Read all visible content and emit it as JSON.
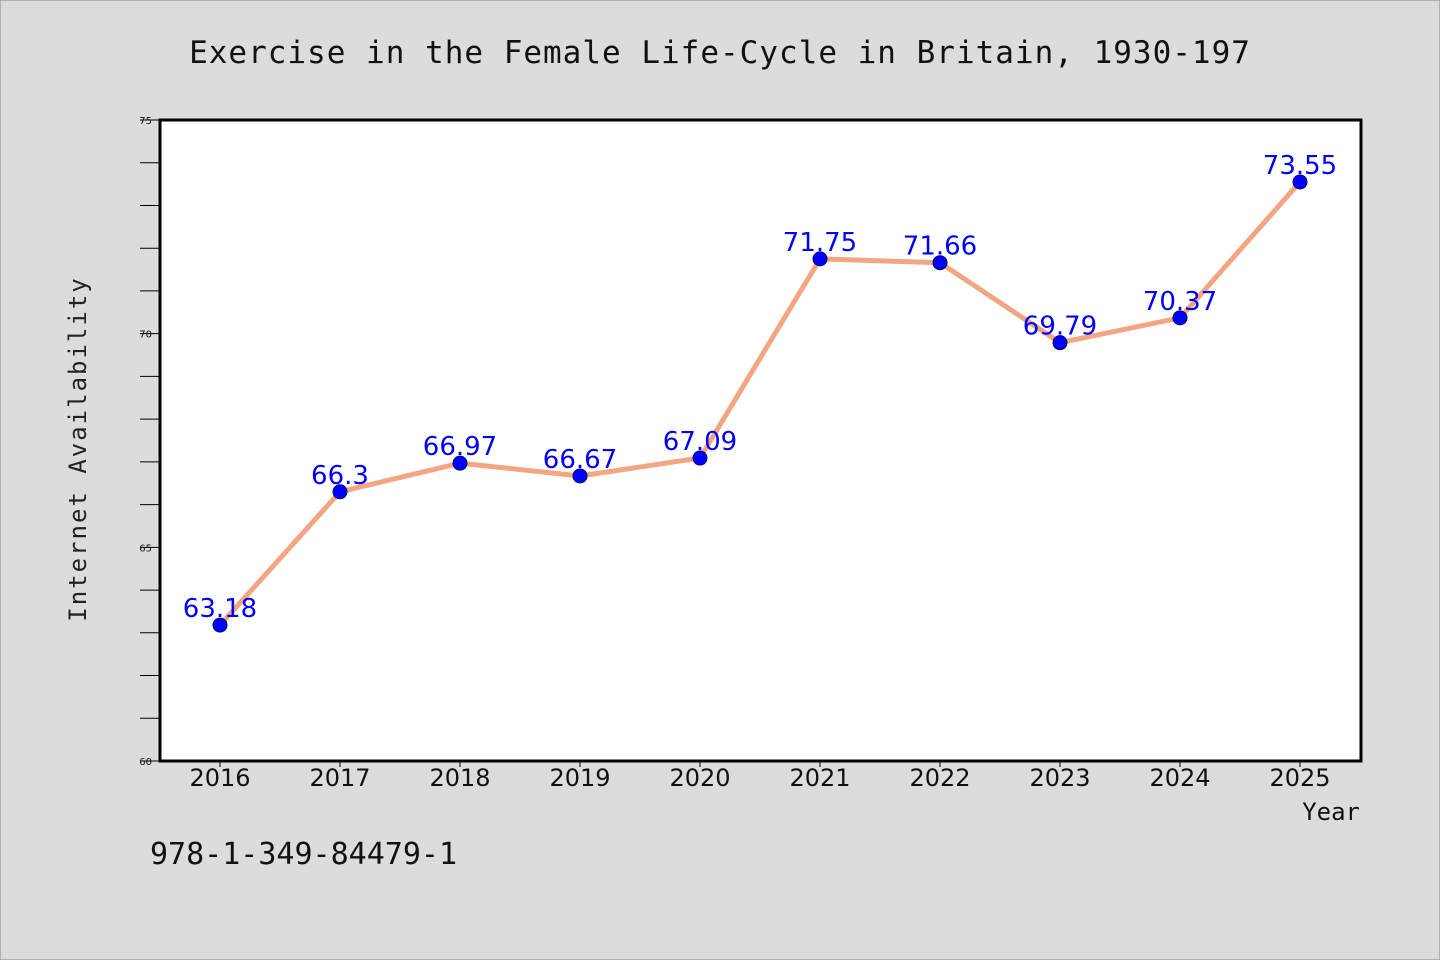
{
  "chart_data": {
    "type": "line",
    "title": "Exercise in the Female Life-Cycle in Britain, 1930-197",
    "xlabel": "Year",
    "ylabel": "Internet Availability",
    "categories": [
      "2016",
      "2017",
      "2018",
      "2019",
      "2020",
      "2021",
      "2022",
      "2023",
      "2024",
      "2025"
    ],
    "values": [
      63.18,
      66.3,
      66.97,
      66.67,
      67.09,
      71.75,
      71.66,
      69.79,
      70.37,
      73.55
    ],
    "data_labels": [
      "63.18",
      "66.3",
      "66.97",
      "66.67",
      "67.09",
      "71.75",
      "71.66",
      "69.79",
      "70.37",
      "73.55"
    ],
    "ylim": [
      60,
      75
    ],
    "y_ticks": [
      "60",
      "65",
      "70",
      "75"
    ],
    "y_minor_step": 1,
    "grid": false,
    "legend": "none",
    "line_color": "#f4a582",
    "marker_color": "#0000ff",
    "label_color": "#0000ff",
    "background_color": "#dcdcdc",
    "plot_background_color": "#ffffff"
  },
  "footer": {
    "isbn": "978-1-349-84479-1"
  }
}
